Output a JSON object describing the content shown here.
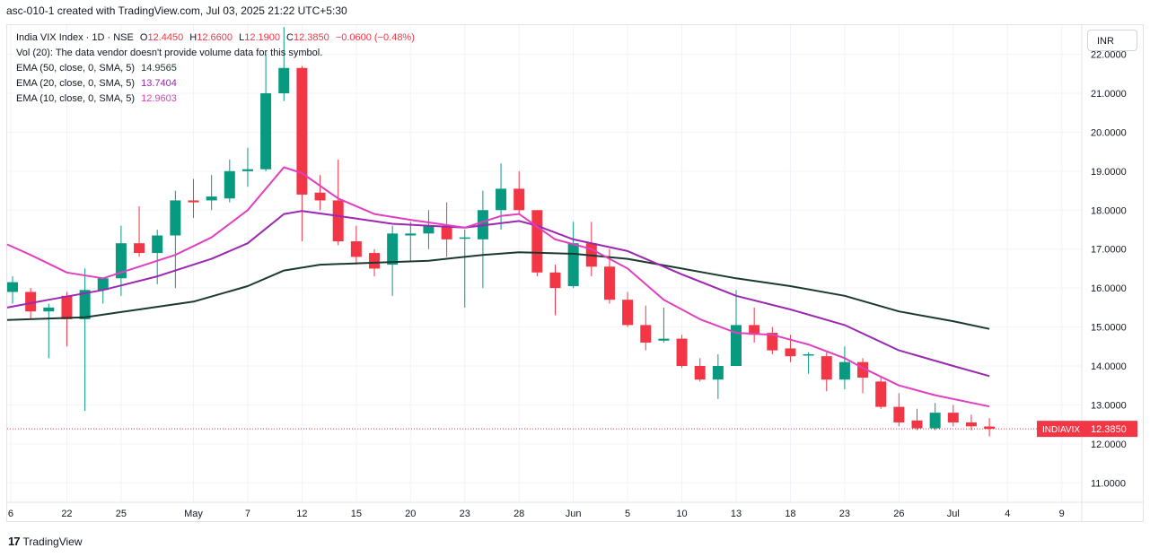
{
  "header": {
    "caption": "asc-010-1 created with TradingView.com, Jul 03, 2025 21:22 UTC+5:30"
  },
  "legend": {
    "symbol": "India VIX Index · 1D · NSE",
    "o_label": "O",
    "o_value": "12.4450",
    "h_label": "H",
    "h_value": "12.6600",
    "l_label": "L",
    "l_value": "12.1900",
    "c_label": "C",
    "c_value": "12.3850",
    "change": "−0.0600 (−0.48%)",
    "vol_text": "Vol (20): The data vendor doesn't provide volume data for this symbol.",
    "ema50_label": "EMA (50, close, 0, SMA, 5)",
    "ema50_value": "14.9565",
    "ema20_label": "EMA (20, close, 0, SMA, 5)",
    "ema20_value": "13.7404",
    "ema10_label": "EMA (10, close, 0, SMA, 5)",
    "ema10_value": "12.9603"
  },
  "currency": "INR",
  "footer": {
    "brand_logo": "17",
    "brand": "TradingView"
  },
  "colors": {
    "up": "#089981",
    "down": "#f23645",
    "ema50": "#1b3a2f",
    "ema20": "#9c27b0",
    "ema10": "#e040c0",
    "grid": "#f0f3fa",
    "text": "#131722"
  },
  "chart_data": {
    "type": "candlestick",
    "symbol": "INDIAVIX",
    "last_price": "12.3850",
    "y_axis": {
      "min": 10.5,
      "max": 22.75,
      "ticks": [
        "11.0000",
        "12.0000",
        "13.0000",
        "14.0000",
        "15.0000",
        "16.0000",
        "17.0000",
        "18.0000",
        "19.0000",
        "20.0000",
        "21.0000",
        "22.0000"
      ]
    },
    "x_axis": {
      "ticks": [
        {
          "label": "6",
          "i": -0.1
        },
        {
          "label": "22",
          "i": 3
        },
        {
          "label": "25",
          "i": 6
        },
        {
          "label": "May",
          "i": 10
        },
        {
          "label": "7",
          "i": 13
        },
        {
          "label": "12",
          "i": 16
        },
        {
          "label": "15",
          "i": 19
        },
        {
          "label": "20",
          "i": 22
        },
        {
          "label": "23",
          "i": 25
        },
        {
          "label": "28",
          "i": 28
        },
        {
          "label": "Jun",
          "i": 31
        },
        {
          "label": "5",
          "i": 34
        },
        {
          "label": "10",
          "i": 37
        },
        {
          "label": "13",
          "i": 40
        },
        {
          "label": "18",
          "i": 43
        },
        {
          "label": "23",
          "i": 46
        },
        {
          "label": "26",
          "i": 49
        },
        {
          "label": "Jul",
          "i": 52
        },
        {
          "label": "4",
          "i": 55
        },
        {
          "label": "9",
          "i": 58
        }
      ]
    },
    "candles": [
      {
        "o": 15.9,
        "h": 16.3,
        "l": 15.6,
        "c": 16.15
      },
      {
        "o": 15.9,
        "h": 16.0,
        "l": 15.2,
        "c": 15.4
      },
      {
        "o": 15.4,
        "h": 15.6,
        "l": 14.2,
        "c": 15.5
      },
      {
        "o": 15.8,
        "h": 15.9,
        "l": 14.5,
        "c": 15.2
      },
      {
        "o": 15.2,
        "h": 16.5,
        "l": 12.85,
        "c": 15.95
      },
      {
        "o": 15.95,
        "h": 16.2,
        "l": 15.6,
        "c": 16.25
      },
      {
        "o": 16.25,
        "h": 17.6,
        "l": 15.8,
        "c": 17.15
      },
      {
        "o": 17.15,
        "h": 18.1,
        "l": 16.8,
        "c": 16.9
      },
      {
        "o": 16.9,
        "h": 17.5,
        "l": 16.1,
        "c": 17.35
      },
      {
        "o": 17.35,
        "h": 18.5,
        "l": 16.0,
        "c": 18.25
      },
      {
        "o": 18.25,
        "h": 18.8,
        "l": 17.8,
        "c": 18.2
      },
      {
        "o": 18.25,
        "h": 18.9,
        "l": 18.0,
        "c": 18.35
      },
      {
        "o": 18.3,
        "h": 19.3,
        "l": 18.2,
        "c": 19.0
      },
      {
        "o": 19.0,
        "h": 19.6,
        "l": 18.6,
        "c": 19.05
      },
      {
        "o": 19.05,
        "h": 22.0,
        "l": 19.0,
        "c": 21.0
      },
      {
        "o": 21.0,
        "h": 22.7,
        "l": 20.8,
        "c": 21.65
      },
      {
        "o": 21.65,
        "h": 21.7,
        "l": 17.2,
        "c": 18.4
      },
      {
        "o": 18.45,
        "h": 18.9,
        "l": 18.0,
        "c": 18.25
      },
      {
        "o": 18.25,
        "h": 19.3,
        "l": 17.1,
        "c": 17.2
      },
      {
        "o": 17.2,
        "h": 17.6,
        "l": 16.6,
        "c": 16.8
      },
      {
        "o": 16.9,
        "h": 17.0,
        "l": 16.3,
        "c": 16.5
      },
      {
        "o": 16.6,
        "h": 17.6,
        "l": 15.8,
        "c": 17.4
      },
      {
        "o": 17.35,
        "h": 17.7,
        "l": 16.7,
        "c": 17.4
      },
      {
        "o": 17.4,
        "h": 18.0,
        "l": 17.0,
        "c": 17.6
      },
      {
        "o": 17.6,
        "h": 18.2,
        "l": 16.8,
        "c": 17.25
      },
      {
        "o": 17.3,
        "h": 17.5,
        "l": 15.5,
        "c": 17.3
      },
      {
        "o": 17.25,
        "h": 18.5,
        "l": 16.0,
        "c": 18.0
      },
      {
        "o": 18.0,
        "h": 19.2,
        "l": 17.5,
        "c": 18.55
      },
      {
        "o": 18.55,
        "h": 19.0,
        "l": 17.9,
        "c": 18.0
      },
      {
        "o": 18.0,
        "h": 18.0,
        "l": 16.3,
        "c": 16.4
      },
      {
        "o": 16.4,
        "h": 16.6,
        "l": 15.3,
        "c": 16.0
      },
      {
        "o": 16.05,
        "h": 17.7,
        "l": 16.0,
        "c": 17.15
      },
      {
        "o": 17.15,
        "h": 17.7,
        "l": 16.3,
        "c": 16.55
      },
      {
        "o": 16.55,
        "h": 17.0,
        "l": 15.6,
        "c": 15.7
      },
      {
        "o": 15.7,
        "h": 15.9,
        "l": 15.0,
        "c": 15.05
      },
      {
        "o": 15.05,
        "h": 15.55,
        "l": 14.4,
        "c": 14.6
      },
      {
        "o": 14.65,
        "h": 15.5,
        "l": 14.6,
        "c": 14.7
      },
      {
        "o": 14.7,
        "h": 14.8,
        "l": 13.95,
        "c": 14.0
      },
      {
        "o": 14.0,
        "h": 14.2,
        "l": 13.6,
        "c": 13.65
      },
      {
        "o": 13.65,
        "h": 14.3,
        "l": 13.15,
        "c": 14.0
      },
      {
        "o": 14.0,
        "h": 15.95,
        "l": 14.0,
        "c": 15.05
      },
      {
        "o": 15.05,
        "h": 15.5,
        "l": 14.6,
        "c": 14.8
      },
      {
        "o": 14.85,
        "h": 15.0,
        "l": 14.3,
        "c": 14.4
      },
      {
        "o": 14.45,
        "h": 14.8,
        "l": 14.1,
        "c": 14.25
      },
      {
        "o": 14.3,
        "h": 14.35,
        "l": 13.8,
        "c": 14.3
      },
      {
        "o": 14.25,
        "h": 14.35,
        "l": 13.35,
        "c": 13.65
      },
      {
        "o": 13.65,
        "h": 14.5,
        "l": 13.4,
        "c": 14.1
      },
      {
        "o": 14.1,
        "h": 14.2,
        "l": 13.3,
        "c": 13.7
      },
      {
        "o": 13.6,
        "h": 13.7,
        "l": 12.9,
        "c": 12.95
      },
      {
        "o": 12.95,
        "h": 13.3,
        "l": 12.45,
        "c": 12.55
      },
      {
        "o": 12.6,
        "h": 12.9,
        "l": 12.35,
        "c": 12.4
      },
      {
        "o": 12.4,
        "h": 13.05,
        "l": 12.35,
        "c": 12.8
      },
      {
        "o": 12.8,
        "h": 13.0,
        "l": 12.45,
        "c": 12.55
      },
      {
        "o": 12.55,
        "h": 12.75,
        "l": 12.35,
        "c": 12.45
      },
      {
        "o": 12.445,
        "h": 12.66,
        "l": 12.19,
        "c": 12.385
      }
    ],
    "series": [
      {
        "name": "EMA (50, close, 0, SMA, 5)",
        "color": "#1b3a2f",
        "points": [
          [
            -0.3,
            15.18
          ],
          [
            4,
            15.25
          ],
          [
            7,
            15.45
          ],
          [
            10,
            15.65
          ],
          [
            13,
            16.05
          ],
          [
            15,
            16.45
          ],
          [
            17,
            16.6
          ],
          [
            20,
            16.65
          ],
          [
            23,
            16.7
          ],
          [
            26,
            16.85
          ],
          [
            28,
            16.92
          ],
          [
            31,
            16.88
          ],
          [
            34,
            16.75
          ],
          [
            37,
            16.5
          ],
          [
            40,
            16.25
          ],
          [
            43,
            16.05
          ],
          [
            46,
            15.8
          ],
          [
            49,
            15.4
          ],
          [
            52,
            15.15
          ],
          [
            54,
            14.95
          ]
        ]
      },
      {
        "name": "EMA (20, close, 0, SMA, 5)",
        "color": "#9c27b0",
        "points": [
          [
            -0.3,
            15.5
          ],
          [
            2,
            15.7
          ],
          [
            5,
            15.95
          ],
          [
            8,
            16.3
          ],
          [
            11,
            16.75
          ],
          [
            13,
            17.15
          ],
          [
            15,
            17.9
          ],
          [
            16,
            17.98
          ],
          [
            18,
            17.85
          ],
          [
            21,
            17.65
          ],
          [
            25,
            17.55
          ],
          [
            28,
            17.72
          ],
          [
            29,
            17.6
          ],
          [
            31,
            17.25
          ],
          [
            34,
            16.95
          ],
          [
            37,
            16.35
          ],
          [
            40,
            15.8
          ],
          [
            43,
            15.45
          ],
          [
            46,
            15.05
          ],
          [
            49,
            14.4
          ],
          [
            52,
            14.0
          ],
          [
            54,
            13.74
          ]
        ]
      },
      {
        "name": "EMA (10, close, 0, SMA, 5)",
        "color": "#e040c0",
        "points": [
          [
            -0.3,
            17.12
          ],
          [
            1,
            16.85
          ],
          [
            3,
            16.4
          ],
          [
            5,
            16.25
          ],
          [
            7,
            16.55
          ],
          [
            9,
            16.85
          ],
          [
            11,
            17.3
          ],
          [
            13,
            18.0
          ],
          [
            15,
            19.1
          ],
          [
            16,
            18.95
          ],
          [
            18,
            18.3
          ],
          [
            20,
            17.9
          ],
          [
            22,
            17.75
          ],
          [
            25,
            17.55
          ],
          [
            27,
            17.85
          ],
          [
            28,
            17.9
          ],
          [
            30,
            17.25
          ],
          [
            32,
            17.0
          ],
          [
            34,
            16.5
          ],
          [
            36,
            15.7
          ],
          [
            38,
            15.2
          ],
          [
            40,
            14.85
          ],
          [
            42,
            14.8
          ],
          [
            44,
            14.55
          ],
          [
            46,
            14.2
          ],
          [
            47,
            13.95
          ],
          [
            49,
            13.5
          ],
          [
            51,
            13.25
          ],
          [
            54,
            12.96
          ]
        ]
      }
    ]
  }
}
